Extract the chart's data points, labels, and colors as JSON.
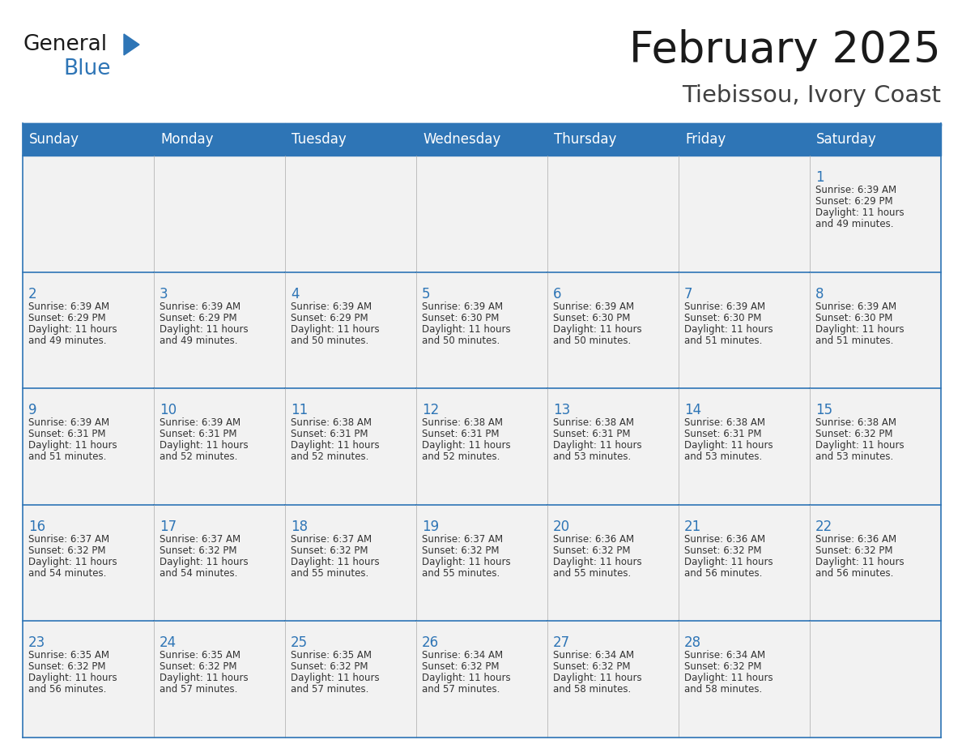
{
  "title": "February 2025",
  "subtitle": "Tiebissou, Ivory Coast",
  "header_bg": "#2E75B6",
  "header_text_color": "#FFFFFF",
  "cell_bg_white": "#FFFFFF",
  "cell_bg_light": "#EFEFEF",
  "border_color": "#2E75B6",
  "border_color_light": "#B8CCE4",
  "day_headers": [
    "Sunday",
    "Monday",
    "Tuesday",
    "Wednesday",
    "Thursday",
    "Friday",
    "Saturday"
  ],
  "title_color": "#1a1a1a",
  "subtitle_color": "#404040",
  "day_number_color": "#2E75B6",
  "cell_text_color": "#333333",
  "calendar_data": [
    [
      null,
      null,
      null,
      null,
      null,
      null,
      {
        "day": 1,
        "sunrise": "6:39 AM",
        "sunset": "6:29 PM",
        "daylight": "11 hours",
        "daylight2": "and 49 minutes."
      }
    ],
    [
      {
        "day": 2,
        "sunrise": "6:39 AM",
        "sunset": "6:29 PM",
        "daylight": "11 hours",
        "daylight2": "and 49 minutes."
      },
      {
        "day": 3,
        "sunrise": "6:39 AM",
        "sunset": "6:29 PM",
        "daylight": "11 hours",
        "daylight2": "and 49 minutes."
      },
      {
        "day": 4,
        "sunrise": "6:39 AM",
        "sunset": "6:29 PM",
        "daylight": "11 hours",
        "daylight2": "and 50 minutes."
      },
      {
        "day": 5,
        "sunrise": "6:39 AM",
        "sunset": "6:30 PM",
        "daylight": "11 hours",
        "daylight2": "and 50 minutes."
      },
      {
        "day": 6,
        "sunrise": "6:39 AM",
        "sunset": "6:30 PM",
        "daylight": "11 hours",
        "daylight2": "and 50 minutes."
      },
      {
        "day": 7,
        "sunrise": "6:39 AM",
        "sunset": "6:30 PM",
        "daylight": "11 hours",
        "daylight2": "and 51 minutes."
      },
      {
        "day": 8,
        "sunrise": "6:39 AM",
        "sunset": "6:30 PM",
        "daylight": "11 hours",
        "daylight2": "and 51 minutes."
      }
    ],
    [
      {
        "day": 9,
        "sunrise": "6:39 AM",
        "sunset": "6:31 PM",
        "daylight": "11 hours",
        "daylight2": "and 51 minutes."
      },
      {
        "day": 10,
        "sunrise": "6:39 AM",
        "sunset": "6:31 PM",
        "daylight": "11 hours",
        "daylight2": "and 52 minutes."
      },
      {
        "day": 11,
        "sunrise": "6:38 AM",
        "sunset": "6:31 PM",
        "daylight": "11 hours",
        "daylight2": "and 52 minutes."
      },
      {
        "day": 12,
        "sunrise": "6:38 AM",
        "sunset": "6:31 PM",
        "daylight": "11 hours",
        "daylight2": "and 52 minutes."
      },
      {
        "day": 13,
        "sunrise": "6:38 AM",
        "sunset": "6:31 PM",
        "daylight": "11 hours",
        "daylight2": "and 53 minutes."
      },
      {
        "day": 14,
        "sunrise": "6:38 AM",
        "sunset": "6:31 PM",
        "daylight": "11 hours",
        "daylight2": "and 53 minutes."
      },
      {
        "day": 15,
        "sunrise": "6:38 AM",
        "sunset": "6:32 PM",
        "daylight": "11 hours",
        "daylight2": "and 53 minutes."
      }
    ],
    [
      {
        "day": 16,
        "sunrise": "6:37 AM",
        "sunset": "6:32 PM",
        "daylight": "11 hours",
        "daylight2": "and 54 minutes."
      },
      {
        "day": 17,
        "sunrise": "6:37 AM",
        "sunset": "6:32 PM",
        "daylight": "11 hours",
        "daylight2": "and 54 minutes."
      },
      {
        "day": 18,
        "sunrise": "6:37 AM",
        "sunset": "6:32 PM",
        "daylight": "11 hours",
        "daylight2": "and 55 minutes."
      },
      {
        "day": 19,
        "sunrise": "6:37 AM",
        "sunset": "6:32 PM",
        "daylight": "11 hours",
        "daylight2": "and 55 minutes."
      },
      {
        "day": 20,
        "sunrise": "6:36 AM",
        "sunset": "6:32 PM",
        "daylight": "11 hours",
        "daylight2": "and 55 minutes."
      },
      {
        "day": 21,
        "sunrise": "6:36 AM",
        "sunset": "6:32 PM",
        "daylight": "11 hours",
        "daylight2": "and 56 minutes."
      },
      {
        "day": 22,
        "sunrise": "6:36 AM",
        "sunset": "6:32 PM",
        "daylight": "11 hours",
        "daylight2": "and 56 minutes."
      }
    ],
    [
      {
        "day": 23,
        "sunrise": "6:35 AM",
        "sunset": "6:32 PM",
        "daylight": "11 hours",
        "daylight2": "and 56 minutes."
      },
      {
        "day": 24,
        "sunrise": "6:35 AM",
        "sunset": "6:32 PM",
        "daylight": "11 hours",
        "daylight2": "and 57 minutes."
      },
      {
        "day": 25,
        "sunrise": "6:35 AM",
        "sunset": "6:32 PM",
        "daylight": "11 hours",
        "daylight2": "and 57 minutes."
      },
      {
        "day": 26,
        "sunrise": "6:34 AM",
        "sunset": "6:32 PM",
        "daylight": "11 hours",
        "daylight2": "and 57 minutes."
      },
      {
        "day": 27,
        "sunrise": "6:34 AM",
        "sunset": "6:32 PM",
        "daylight": "11 hours",
        "daylight2": "and 58 minutes."
      },
      {
        "day": 28,
        "sunrise": "6:34 AM",
        "sunset": "6:32 PM",
        "daylight": "11 hours",
        "daylight2": "and 58 minutes."
      },
      null
    ]
  ]
}
